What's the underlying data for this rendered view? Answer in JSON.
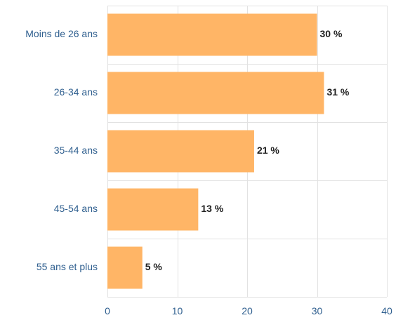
{
  "chart_data": {
    "type": "bar",
    "orientation": "horizontal",
    "categories": [
      "Moins de 26 ans",
      "26-34 ans",
      "35-44 ans",
      "45-54 ans",
      "55 ans et plus"
    ],
    "values": [
      30,
      31,
      21,
      13,
      5
    ],
    "data_labels": [
      "30 %",
      "31 %",
      "21 %",
      "13 %",
      "5 %"
    ],
    "xlim": [
      0,
      40
    ],
    "x_ticks": [
      0,
      10,
      20,
      30,
      40
    ],
    "x_tick_labels": [
      "0",
      "10",
      "20",
      "30",
      "40"
    ],
    "grid": true,
    "legend": "none",
    "bar_color": "#ffb566",
    "grid_color": "#e2e2e2",
    "label_color": "#2f5f8f",
    "data_label_color": "#222222"
  }
}
